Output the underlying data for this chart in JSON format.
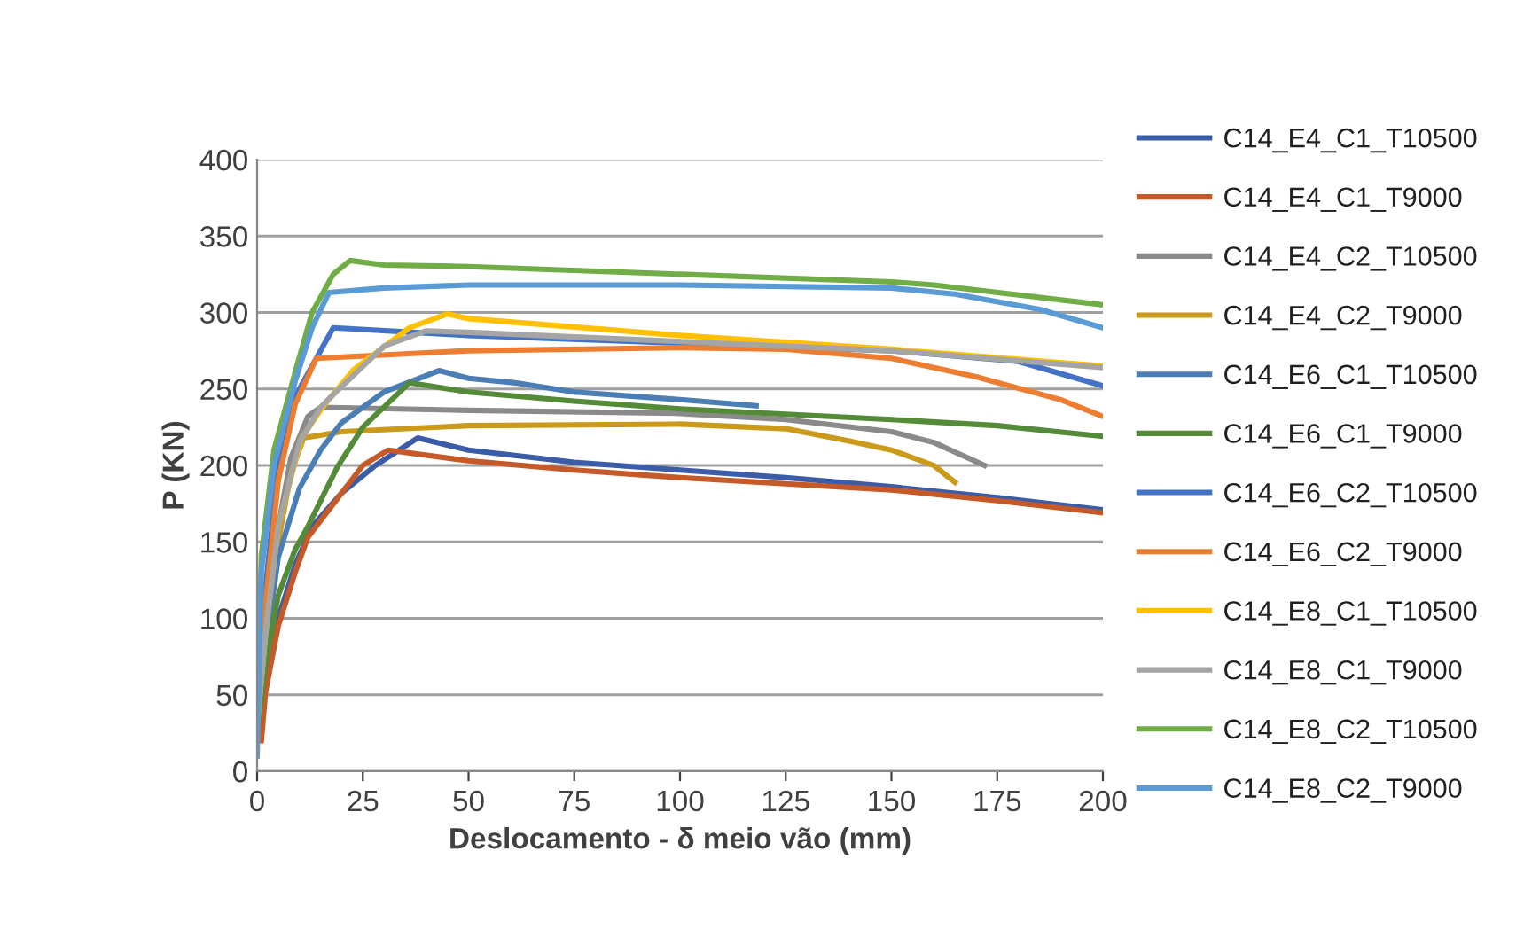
{
  "chart_data": {
    "type": "line",
    "xlabel": "Deslocamento - δ meio vão (mm)",
    "ylabel": "P (KN)",
    "xlim": [
      0,
      200
    ],
    "ylim": [
      0,
      400
    ],
    "xticks": [
      0,
      25,
      50,
      75,
      100,
      125,
      150,
      175,
      200
    ],
    "yticks": [
      0,
      50,
      100,
      150,
      200,
      250,
      300,
      350,
      400
    ],
    "grid": "y",
    "legend": "right",
    "marker": "none",
    "line_style": "solid",
    "series": [
      {
        "name": "C14_E4_C1_T10500",
        "color": "#3b5ca6",
        "x": [
          0,
          2,
          5,
          9,
          13,
          20,
          28,
          38,
          50,
          75,
          100,
          125,
          150,
          175,
          200
        ],
        "values": [
          25,
          55,
          100,
          135,
          160,
          182,
          200,
          218,
          210,
          202,
          197,
          192,
          186,
          179,
          171
        ]
      },
      {
        "name": "C14_E4_C1_T9000",
        "color": "#c55a28",
        "x": [
          1,
          2,
          5,
          9,
          12,
          20,
          25,
          31,
          50,
          75,
          100,
          125,
          150,
          175,
          200
        ],
        "values": [
          20,
          52,
          95,
          130,
          153,
          182,
          200,
          210,
          203,
          197,
          192,
          188,
          184,
          177,
          169
        ]
      },
      {
        "name": "C14_E4_C2_T10500",
        "color": "#8a8a8a",
        "x": [
          0,
          2,
          5,
          8,
          12,
          15,
          50,
          100,
          125,
          150,
          160,
          172
        ],
        "values": [
          30,
          90,
          160,
          205,
          232,
          238,
          236,
          234,
          230,
          222,
          215,
          200
        ]
      },
      {
        "name": "C14_E4_C2_T9000",
        "color": "#cc9a1a",
        "x": [
          0,
          2,
          5,
          8,
          11,
          20,
          50,
          100,
          125,
          140,
          150,
          160,
          165
        ],
        "values": [
          30,
          85,
          150,
          195,
          218,
          222,
          226,
          227,
          224,
          216,
          210,
          200,
          189
        ]
      },
      {
        "name": "C14_E6_C1_T10500",
        "color": "#4a7eb5",
        "x": [
          0,
          2,
          5,
          10,
          15,
          20,
          30,
          43,
          50,
          61,
          75,
          100,
          118
        ],
        "values": [
          30,
          80,
          140,
          185,
          210,
          228,
          248,
          262,
          257,
          254,
          248,
          243,
          239
        ]
      },
      {
        "name": "C14_E6_C1_T9000",
        "color": "#548b38",
        "x": [
          0,
          2,
          5,
          9,
          12,
          19,
          25,
          36,
          50,
          75,
          100,
          150,
          175,
          200
        ],
        "values": [
          25,
          70,
          115,
          145,
          160,
          199,
          225,
          254,
          248,
          242,
          237,
          230,
          226,
          219
        ]
      },
      {
        "name": "C14_E6_C2_T10500",
        "color": "#4472c4",
        "x": [
          0,
          2,
          5,
          9,
          14,
          18,
          50,
          100,
          150,
          180,
          200
        ],
        "values": [
          40,
          120,
          200,
          245,
          270,
          290,
          285,
          280,
          275,
          268,
          252
        ]
      },
      {
        "name": "C14_E6_C2_T9000",
        "color": "#ed7d31",
        "x": [
          0,
          2,
          5,
          9,
          14,
          50,
          100,
          125,
          150,
          170,
          190,
          200
        ],
        "values": [
          35,
          110,
          190,
          240,
          270,
          275,
          277,
          276,
          270,
          258,
          243,
          232
        ]
      },
      {
        "name": "C14_E8_C1_T10500",
        "color": "#ffc000",
        "x": [
          0,
          2,
          5,
          10.5,
          16,
          23,
          36,
          45,
          50,
          100,
          150,
          200
        ],
        "values": [
          30,
          90,
          160,
          218,
          240,
          263,
          290,
          299,
          296,
          285,
          276,
          265
        ]
      },
      {
        "name": "C14_E8_C1_T9000",
        "color": "#a5a5a5",
        "x": [
          0,
          2,
          5,
          10,
          15,
          19,
          30,
          40,
          50,
          100,
          150,
          200
        ],
        "values": [
          30,
          90,
          160,
          215,
          238,
          249,
          278,
          288,
          287,
          281,
          275,
          264
        ]
      },
      {
        "name": "C14_E8_C2_T10500",
        "color": "#70ad47",
        "x": [
          0,
          1,
          4,
          9,
          13,
          18,
          22,
          30,
          50,
          100,
          150,
          160,
          200
        ],
        "values": [
          30,
          141,
          210,
          261,
          300,
          325,
          334,
          331,
          330,
          325,
          320,
          318,
          305
        ]
      },
      {
        "name": "C14_E8_C2_T9000",
        "color": "#5b9bd5",
        "x": [
          0,
          1,
          4,
          9,
          13,
          17,
          30,
          50,
          100,
          150,
          165,
          185,
          200
        ],
        "values": [
          10,
          130,
          200,
          255,
          290,
          313,
          316,
          318,
          318,
          316,
          312,
          302,
          290
        ]
      }
    ]
  }
}
